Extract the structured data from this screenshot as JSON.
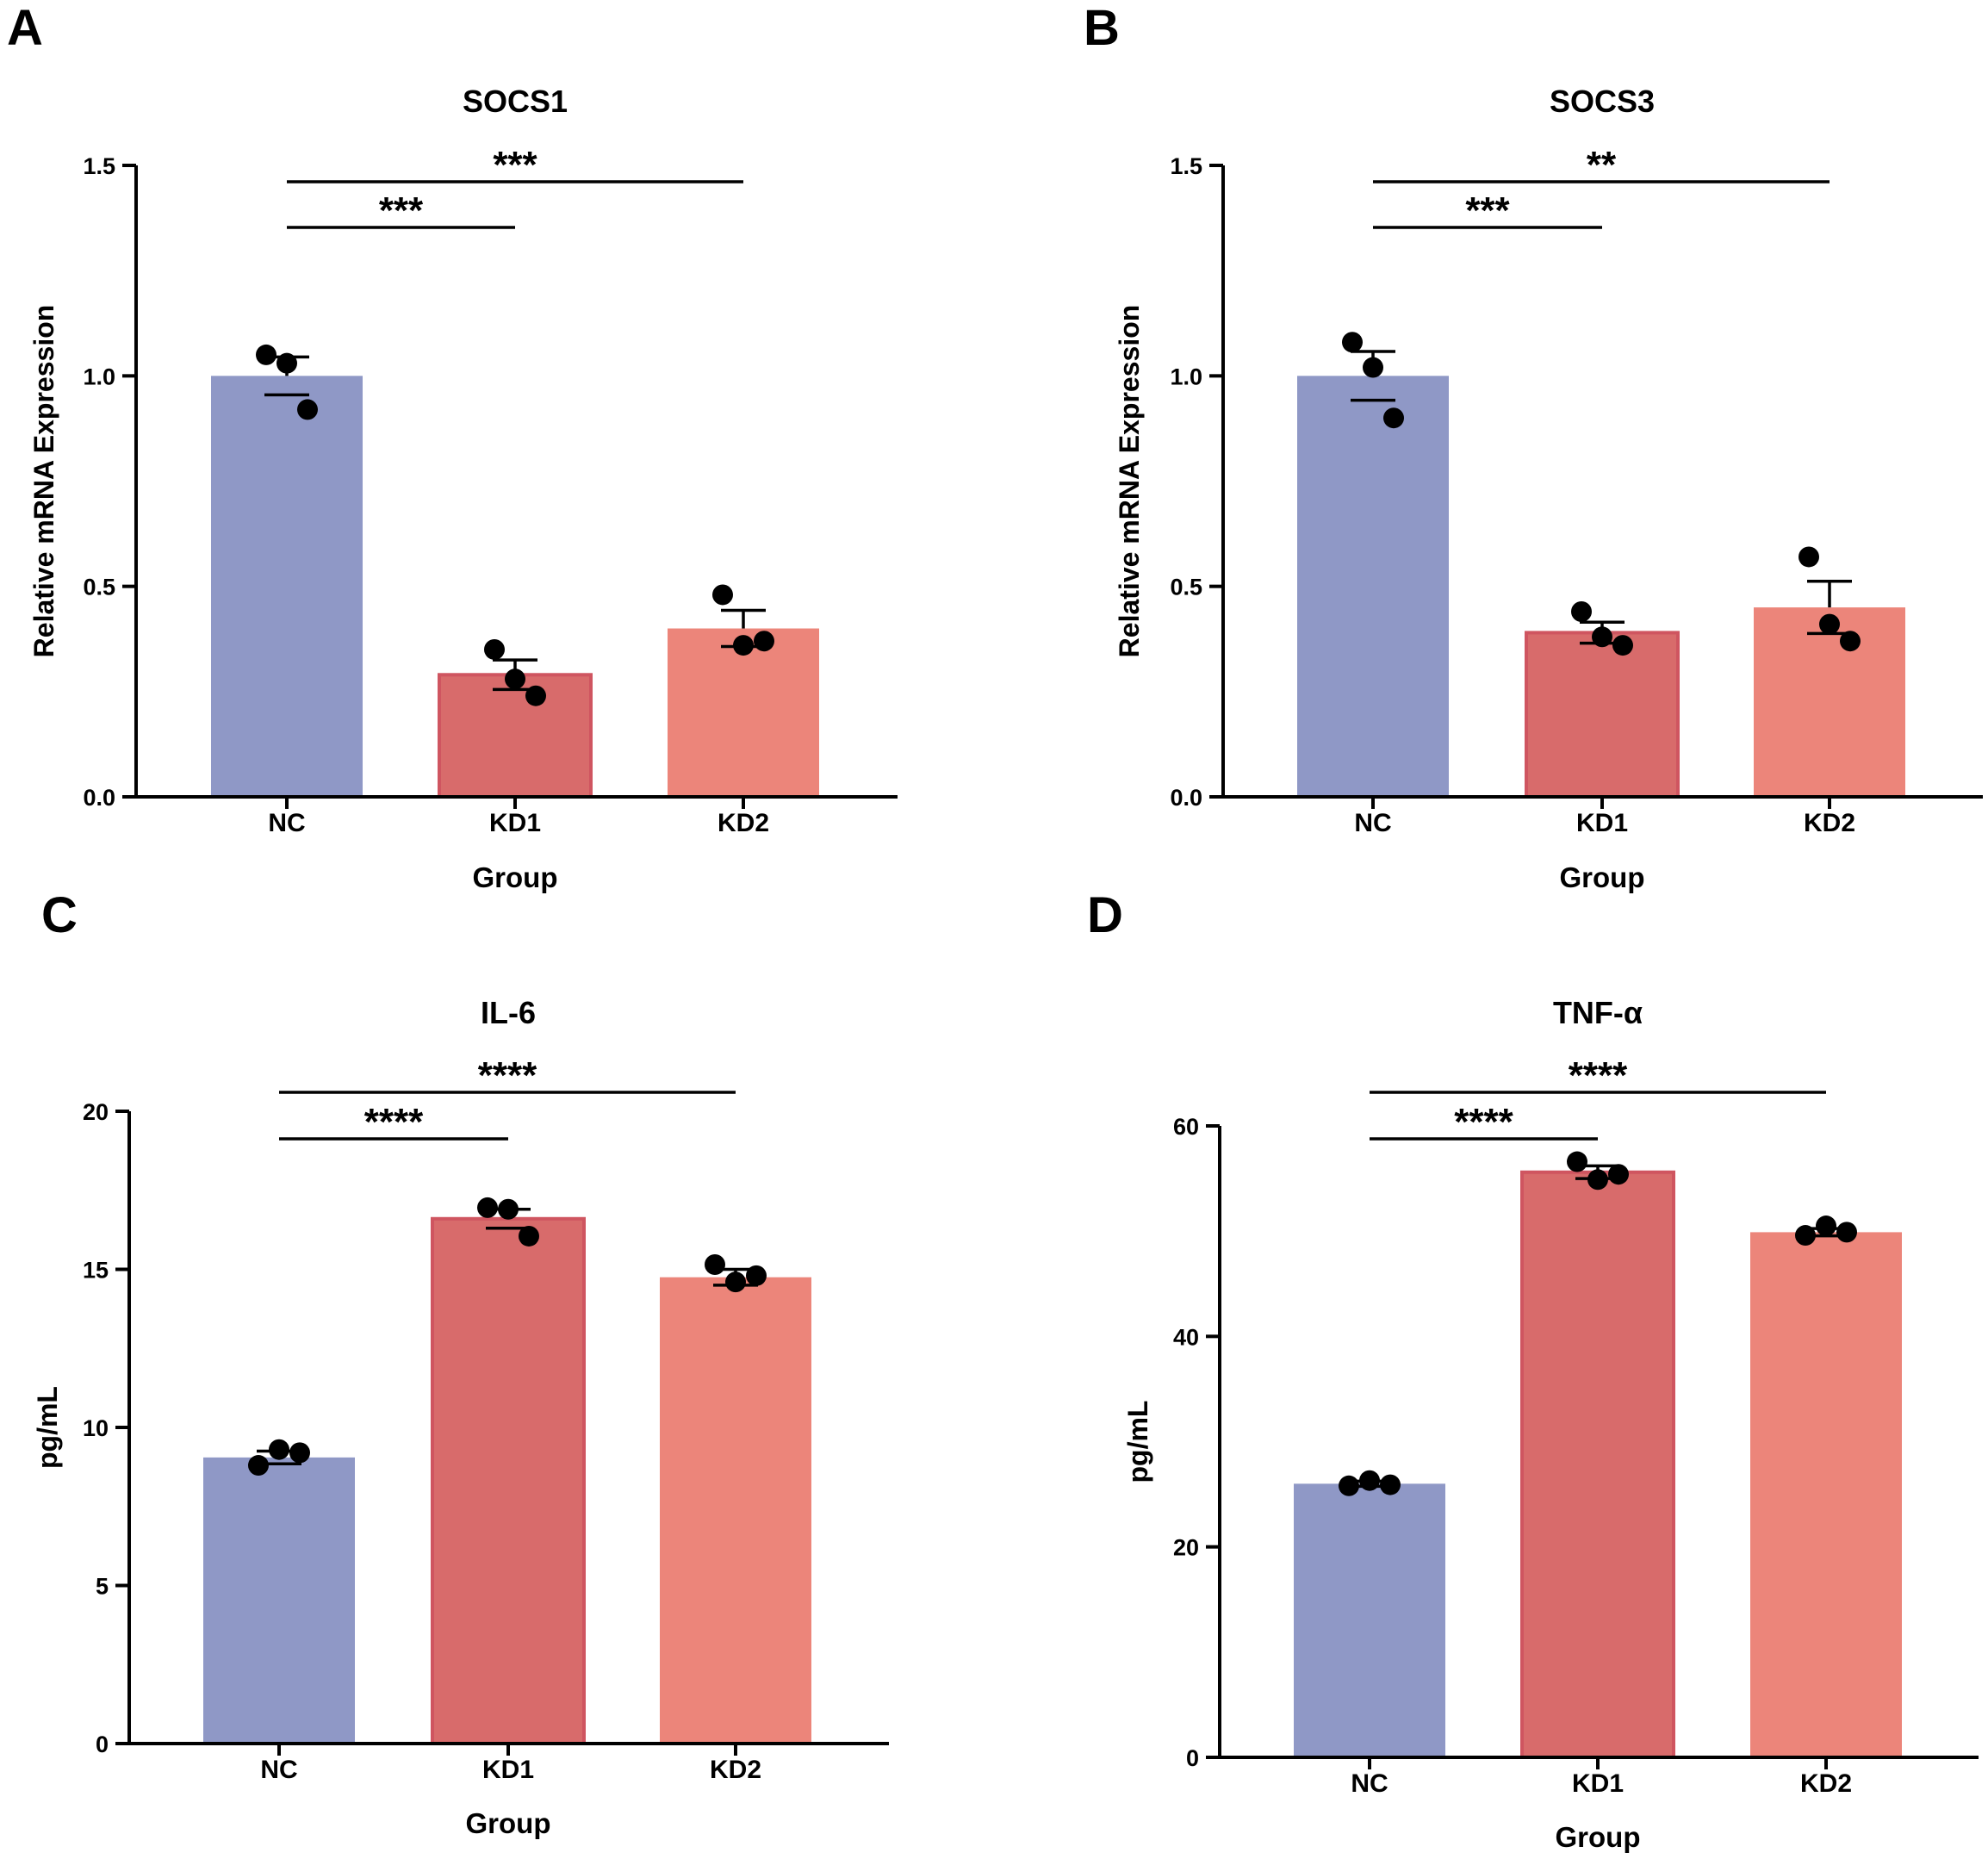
{
  "chart_data": [
    {
      "panel_letter": "A",
      "type": "bar",
      "title": "SOCS1",
      "xlabel": "Group",
      "ylabel": "Relative mRNA Expression",
      "categories": [
        "NC",
        "KD1",
        "KD2"
      ],
      "values": [
        1.0,
        0.29,
        0.4
      ],
      "errors": [
        0.045,
        0.035,
        0.043
      ],
      "points": [
        [
          1.05,
          1.03,
          0.92
        ],
        [
          0.35,
          0.28,
          0.24
        ],
        [
          0.48,
          0.36,
          0.37
        ]
      ],
      "ylim": [
        0,
        1.5
      ],
      "yticks": [
        0,
        0.5,
        1.0,
        1.5
      ],
      "ytick_labels": [
        "0.0",
        "0.5",
        "1.0",
        "1.5"
      ],
      "significance": [
        {
          "from": "NC",
          "to": "KD1",
          "label": "***",
          "level": 1
        },
        {
          "from": "NC",
          "to": "KD2",
          "label": "***",
          "level": 2
        }
      ]
    },
    {
      "panel_letter": "B",
      "type": "bar",
      "title": "SOCS3",
      "xlabel": "Group",
      "ylabel": "Relative mRNA Expression",
      "categories": [
        "NC",
        "KD1",
        "KD2"
      ],
      "values": [
        1.0,
        0.39,
        0.45
      ],
      "errors": [
        0.058,
        0.025,
        0.062
      ],
      "points": [
        [
          1.08,
          1.02,
          0.9
        ],
        [
          0.44,
          0.38,
          0.36
        ],
        [
          0.57,
          0.41,
          0.37
        ]
      ],
      "ylim": [
        0,
        1.5
      ],
      "yticks": [
        0,
        0.5,
        1.0,
        1.5
      ],
      "ytick_labels": [
        "0.0",
        "0.5",
        "1.0",
        "1.5"
      ],
      "significance": [
        {
          "from": "NC",
          "to": "KD1",
          "label": "***",
          "level": 1
        },
        {
          "from": "NC",
          "to": "KD2",
          "label": "**",
          "level": 2
        }
      ]
    },
    {
      "panel_letter": "C",
      "type": "bar",
      "title": "IL-6",
      "xlabel": "Group",
      "ylabel": "pg/mL",
      "categories": [
        "NC",
        "KD1",
        "KD2"
      ],
      "values": [
        9.05,
        16.6,
        14.75
      ],
      "errors": [
        0.2,
        0.3,
        0.25
      ],
      "points": [
        [
          8.8,
          9.3,
          9.2
        ],
        [
          16.95,
          16.9,
          16.05
        ],
        [
          15.15,
          14.6,
          14.8
        ]
      ],
      "ylim": [
        0,
        20
      ],
      "yticks": [
        0,
        5,
        10,
        15,
        20
      ],
      "ytick_labels": [
        "0",
        "5",
        "10",
        "15",
        "20"
      ],
      "significance": [
        {
          "from": "NC",
          "to": "KD1",
          "label": "****",
          "level": 1
        },
        {
          "from": "NC",
          "to": "KD2",
          "label": "****",
          "level": 2
        }
      ]
    },
    {
      "panel_letter": "D",
      "type": "bar",
      "title": "TNF-α",
      "xlabel": "Group",
      "ylabel": "pg/mL",
      "categories": [
        "NC",
        "KD1",
        "KD2"
      ],
      "values": [
        26.0,
        55.6,
        49.9
      ],
      "errors": [
        0.25,
        0.6,
        0.35
      ],
      "points": [
        [
          25.8,
          26.3,
          25.9
        ],
        [
          56.6,
          54.9,
          55.4
        ],
        [
          49.6,
          50.5,
          49.9
        ]
      ],
      "ylim": [
        0,
        60
      ],
      "yticks": [
        0,
        20,
        40,
        60
      ],
      "ytick_labels": [
        "0",
        "20",
        "40",
        "60"
      ],
      "significance": [
        {
          "from": "NC",
          "to": "KD1",
          "label": "****",
          "level": 1
        },
        {
          "from": "NC",
          "to": "KD2",
          "label": "****",
          "level": 2
        }
      ]
    }
  ],
  "colors": {
    "NC": "#8f98c6",
    "KD1": "#d86b6b",
    "KD1_border": "#cf5560",
    "KD2": "#ec857a",
    "axis": "#000000",
    "point": "#000000"
  }
}
